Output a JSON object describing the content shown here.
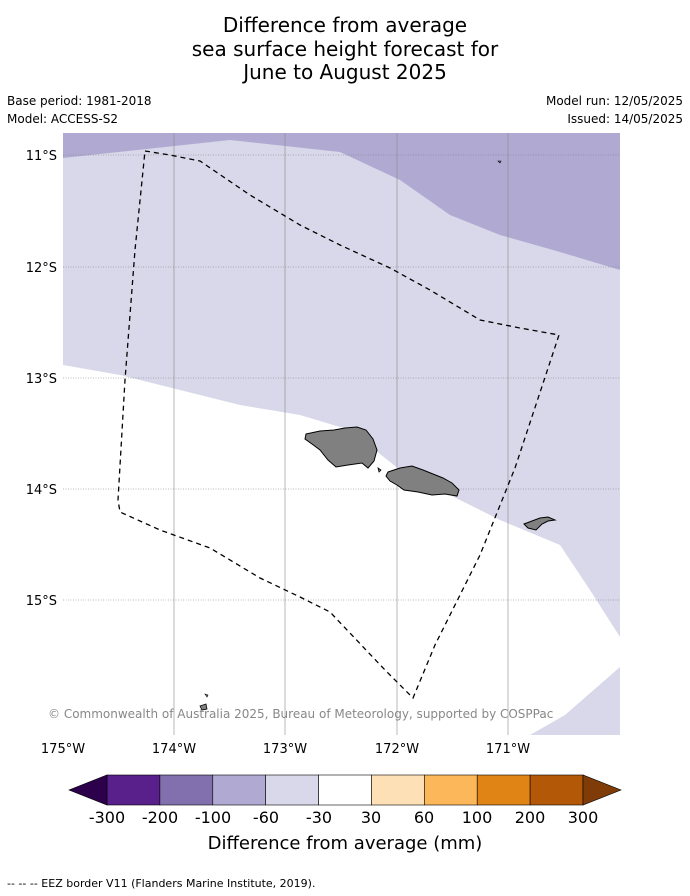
{
  "title_lines": [
    "Difference from average",
    "sea surface height forecast for",
    "June to August 2025"
  ],
  "meta": {
    "base_period": "Base period: 1981-2018",
    "model": "Model: ACCESS-S2",
    "model_run": "Model run: 12/05/2025",
    "issued": "Issued: 14/05/2025"
  },
  "map": {
    "lat_labels": [
      "11°S",
      "12°S",
      "13°S",
      "14°S",
      "15°S"
    ],
    "lon_labels": [
      "175°W",
      "174°W",
      "173°W",
      "172°W",
      "171°W"
    ],
    "copyright": "© Commonwealth of Australia 2025, Bureau of Meteorology, supported by COSPPac"
  },
  "colorbar": {
    "ticks": [
      "-300",
      "-200",
      "-100",
      "-60",
      "-30",
      "30",
      "60",
      "100",
      "200",
      "300"
    ],
    "colors": [
      "#591f8a",
      "#8270ae",
      "#b0aad3",
      "#d8d8ea",
      "#ffffff",
      "#fee0b6",
      "#fbb75a",
      "#e18416",
      "#b35806"
    ],
    "under_color": "#2d004b",
    "over_color": "#7f3b08",
    "label": "Difference from average (mm)"
  },
  "footer": "--  --  -- EEZ border V11 (Flanders Marine Institute, 2019)."
}
